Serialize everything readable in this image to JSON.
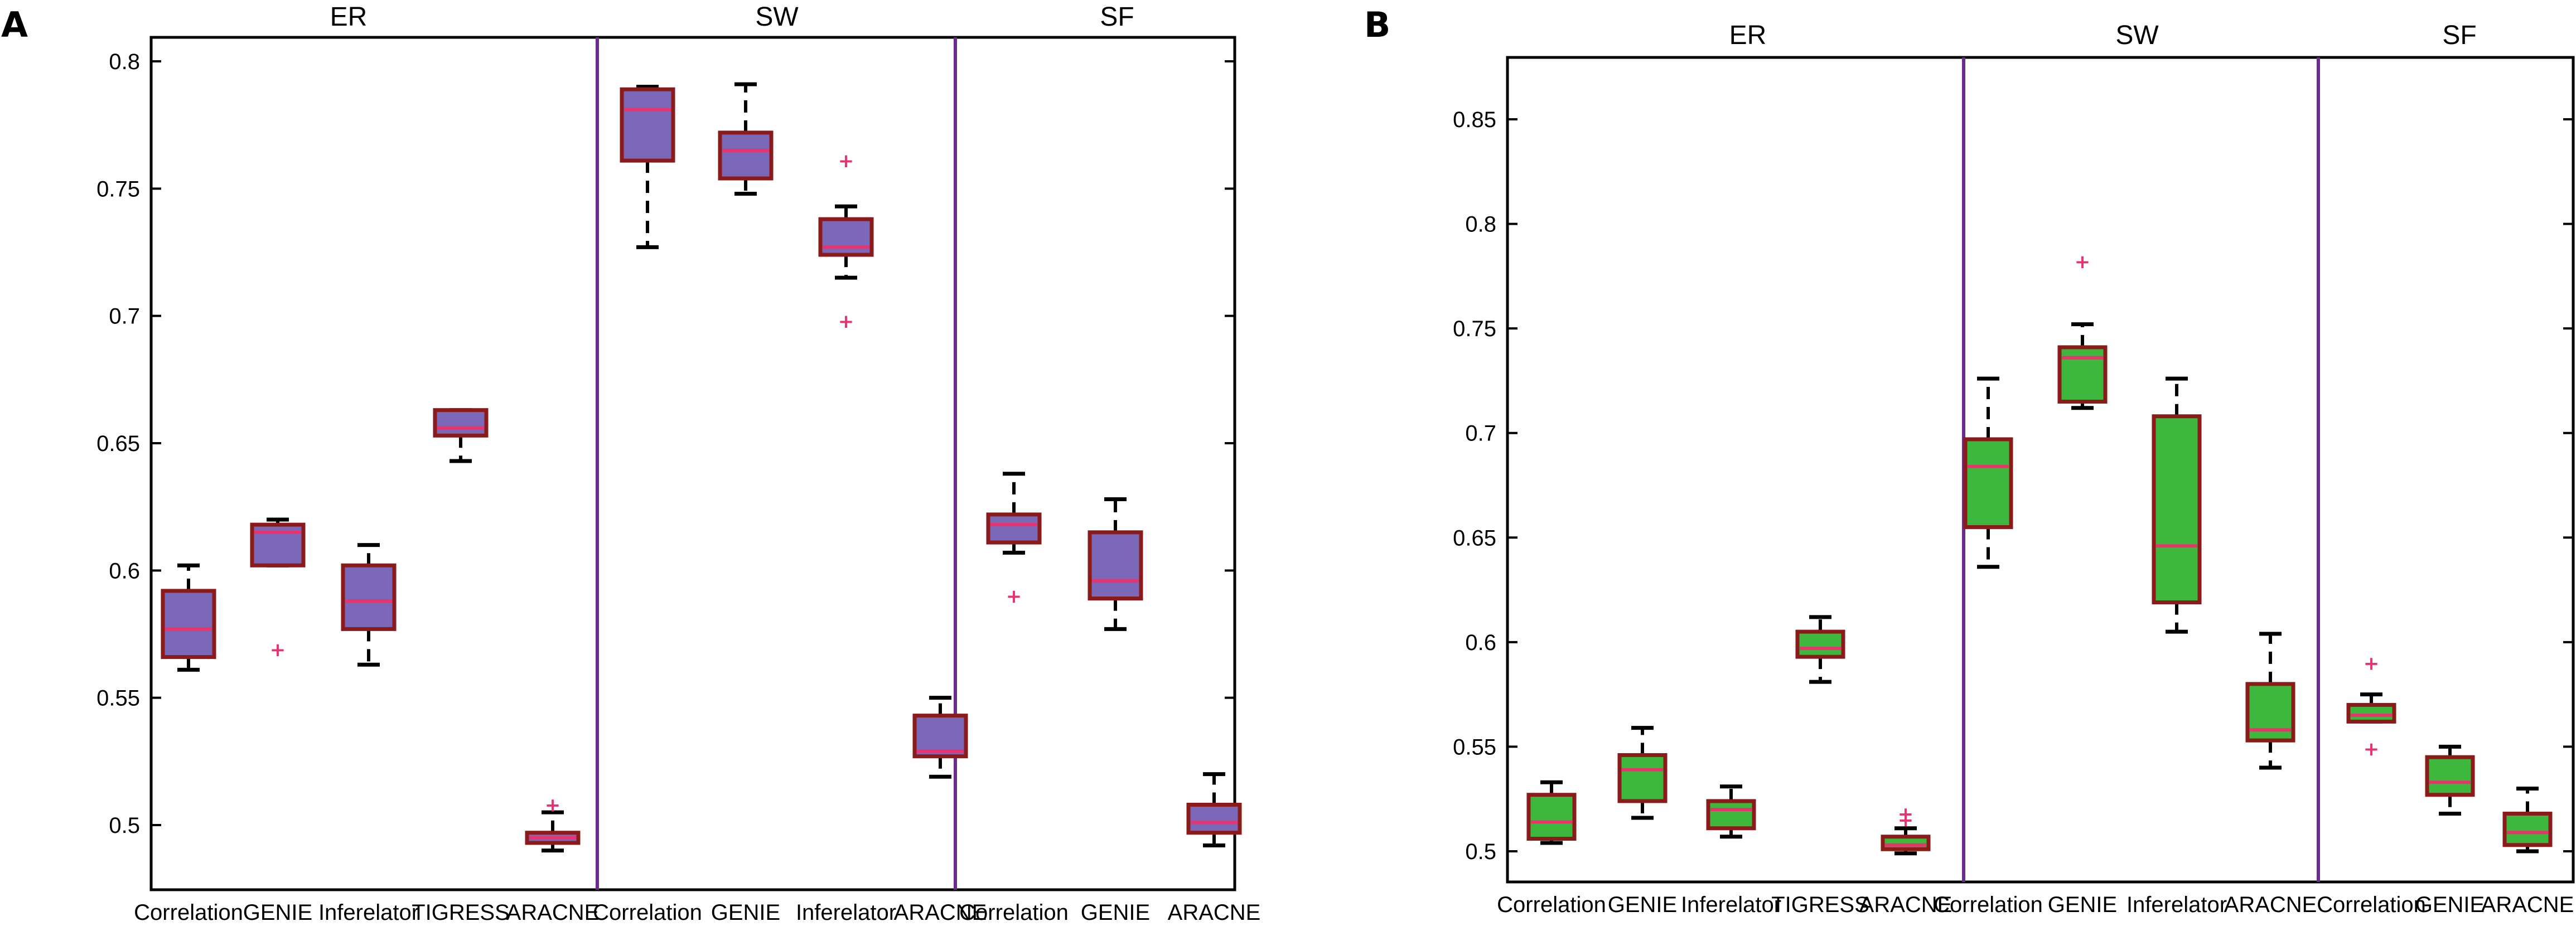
{
  "colors": {
    "box_edge": "#8B1A1A",
    "median": "#E8336E",
    "outlier": "#E8336E",
    "whisker": "#000000",
    "separator": "#6A2C91",
    "fill_A": "#7B68B8",
    "fill_B": "#3DB83D"
  },
  "chart_data": [
    {
      "type": "box",
      "panel": "A",
      "groups": [
        "ER",
        "SW",
        "SF"
      ],
      "ylim": [
        0.485,
        0.815
      ],
      "yticks": [
        0.5,
        0.55,
        0.6,
        0.65,
        0.7,
        0.75,
        0.8
      ],
      "ytick_labels": [
        "0.5",
        "0.55",
        "0.6",
        "0.65",
        "0.7",
        "0.75",
        "0.8"
      ],
      "boxes": [
        {
          "group": 0,
          "label": "Correlation",
          "q1": 0.566,
          "median": 0.577,
          "q3": 0.592,
          "whisker_low": 0.561,
          "whisker_high": 0.602,
          "outliers": []
        },
        {
          "group": 0,
          "label": "GENIE",
          "q1": 0.602,
          "median": 0.615,
          "q3": 0.618,
          "whisker_low": 0.602,
          "whisker_high": 0.62,
          "outliers": [
            0.569
          ]
        },
        {
          "group": 0,
          "label": "Inferelator",
          "q1": 0.577,
          "median": 0.588,
          "q3": 0.602,
          "whisker_low": 0.563,
          "whisker_high": 0.61,
          "outliers": []
        },
        {
          "group": 0,
          "label": "TIGRESS",
          "q1": 0.653,
          "median": 0.656,
          "q3": 0.663,
          "whisker_low": 0.643,
          "whisker_high": 0.663,
          "outliers": []
        },
        {
          "group": 0,
          "label": "ARACNE",
          "q1": 0.493,
          "median": 0.495,
          "q3": 0.497,
          "whisker_low": 0.49,
          "whisker_high": 0.505,
          "outliers": [
            0.508
          ]
        },
        {
          "group": 1,
          "label": "Correlation",
          "q1": 0.761,
          "median": 0.781,
          "q3": 0.789,
          "whisker_low": 0.727,
          "whisker_high": 0.79,
          "outliers": []
        },
        {
          "group": 1,
          "label": "GENIE",
          "q1": 0.754,
          "median": 0.765,
          "q3": 0.772,
          "whisker_low": 0.748,
          "whisker_high": 0.791,
          "outliers": []
        },
        {
          "group": 1,
          "label": "Inferelator",
          "q1": 0.724,
          "median": 0.727,
          "q3": 0.738,
          "whisker_low": 0.715,
          "whisker_high": 0.743,
          "outliers": [
            0.761,
            0.698
          ]
        },
        {
          "group": 1,
          "label": "ARACNE",
          "q1": 0.527,
          "median": 0.529,
          "q3": 0.543,
          "whisker_low": 0.519,
          "whisker_high": 0.55,
          "outliers": []
        },
        {
          "group": 2,
          "label": "Correlation",
          "q1": 0.611,
          "median": 0.618,
          "q3": 0.622,
          "whisker_low": 0.607,
          "whisker_high": 0.638,
          "outliers": [
            0.59
          ]
        },
        {
          "group": 2,
          "label": "GENIE",
          "q1": 0.589,
          "median": 0.596,
          "q3": 0.615,
          "whisker_low": 0.577,
          "whisker_high": 0.628,
          "outliers": []
        },
        {
          "group": 2,
          "label": "ARACNE",
          "q1": 0.497,
          "median": 0.501,
          "q3": 0.508,
          "whisker_low": 0.492,
          "whisker_high": 0.52,
          "outliers": []
        }
      ]
    },
    {
      "type": "box",
      "panel": "B",
      "groups": [
        "ER",
        "SW",
        "SF"
      ],
      "ylim": [
        0.485,
        0.885
      ],
      "yticks": [
        0.5,
        0.55,
        0.6,
        0.65,
        0.7,
        0.75,
        0.8,
        0.85
      ],
      "ytick_labels": [
        "0.5",
        "0.55",
        "0.6",
        "0.65",
        "0.7",
        "0.75",
        "0.8",
        "0.85"
      ],
      "boxes": [
        {
          "group": 0,
          "label": "Correlation",
          "q1": 0.506,
          "median": 0.514,
          "q3": 0.527,
          "whisker_low": 0.504,
          "whisker_high": 0.533,
          "outliers": []
        },
        {
          "group": 0,
          "label": "GENIE",
          "q1": 0.524,
          "median": 0.539,
          "q3": 0.546,
          "whisker_low": 0.516,
          "whisker_high": 0.559,
          "outliers": []
        },
        {
          "group": 0,
          "label": "Inferelator",
          "q1": 0.511,
          "median": 0.52,
          "q3": 0.524,
          "whisker_low": 0.507,
          "whisker_high": 0.531,
          "outliers": []
        },
        {
          "group": 0,
          "label": "TIGRESS",
          "q1": 0.593,
          "median": 0.597,
          "q3": 0.605,
          "whisker_low": 0.581,
          "whisker_high": 0.612,
          "outliers": []
        },
        {
          "group": 0,
          "label": "ARACNE",
          "q1": 0.501,
          "median": 0.503,
          "q3": 0.507,
          "whisker_low": 0.499,
          "whisker_high": 0.511,
          "outliers": [
            0.515,
            0.518
          ]
        },
        {
          "group": 1,
          "label": "Correlation",
          "q1": 0.655,
          "median": 0.684,
          "q3": 0.697,
          "whisker_low": 0.636,
          "whisker_high": 0.726,
          "outliers": []
        },
        {
          "group": 1,
          "label": "GENIE",
          "q1": 0.715,
          "median": 0.736,
          "q3": 0.741,
          "whisker_low": 0.712,
          "whisker_high": 0.752,
          "outliers": [
            0.782
          ]
        },
        {
          "group": 1,
          "label": "Inferelator",
          "q1": 0.619,
          "median": 0.646,
          "q3": 0.708,
          "whisker_low": 0.605,
          "whisker_high": 0.726,
          "outliers": []
        },
        {
          "group": 1,
          "label": "ARACNE",
          "q1": 0.553,
          "median": 0.558,
          "q3": 0.58,
          "whisker_low": 0.54,
          "whisker_high": 0.604,
          "outliers": []
        },
        {
          "group": 2,
          "label": "Correlation",
          "q1": 0.562,
          "median": 0.565,
          "q3": 0.57,
          "whisker_low": 0.562,
          "whisker_high": 0.575,
          "outliers": [
            0.59,
            0.549
          ]
        },
        {
          "group": 2,
          "label": "GENIE",
          "q1": 0.527,
          "median": 0.533,
          "q3": 0.545,
          "whisker_low": 0.518,
          "whisker_high": 0.55,
          "outliers": []
        },
        {
          "group": 2,
          "label": "ARACNE",
          "q1": 0.503,
          "median": 0.509,
          "q3": 0.518,
          "whisker_low": 0.5,
          "whisker_high": 0.53,
          "outliers": []
        }
      ]
    }
  ],
  "panels": [
    {
      "label": "A",
      "groups": [
        "ER",
        "SW",
        "SF"
      ]
    },
    {
      "label": "B",
      "groups": [
        "ER",
        "SW",
        "SF"
      ]
    }
  ]
}
